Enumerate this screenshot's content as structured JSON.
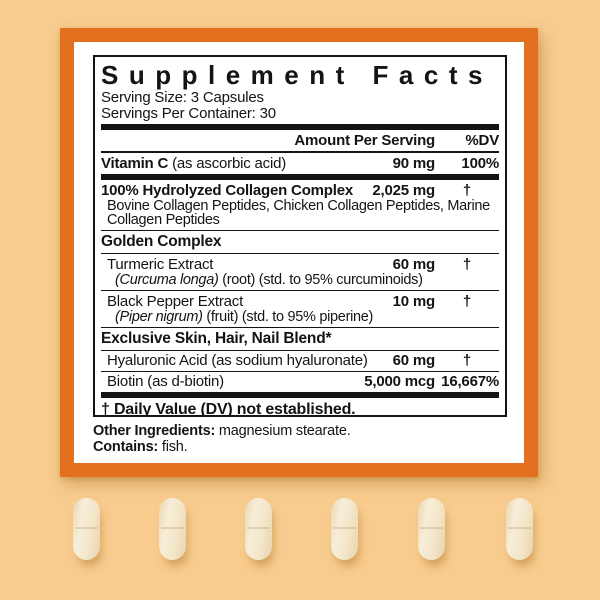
{
  "colors": {
    "bg": "#f8cc8e",
    "orange": "#e2701f",
    "ink": "#151413"
  },
  "label": {
    "title": "Supplement Facts",
    "serving_size": "Serving Size: 3 Capsules",
    "servings_per_container": "Servings Per Container: 30",
    "columns": {
      "amount": "Amount Per Serving",
      "dv": "%DV"
    },
    "rows": {
      "vitamin_c": {
        "name_bold": "Vitamin C",
        "name_rest": " (as ascorbic acid)",
        "amount": "90 mg",
        "dv": "100%"
      },
      "collagen": {
        "name": "100% Hydrolyzed Collagen Complex",
        "amount": "2,025 mg",
        "dv": "†",
        "sub": "Bovine Collagen Peptides, Chicken Collagen Peptides, Marine Collagen Peptides"
      },
      "golden_header": {
        "name": "Golden Complex"
      },
      "turmeric": {
        "name": "Turmeric Extract",
        "amount": "60 mg",
        "dv": "†",
        "latin": "(Curcuma longa)",
        "sub_rest": " (root) (std. to 95% curcuminoids)"
      },
      "black_pepper": {
        "name": "Black Pepper Extract",
        "amount": "10 mg",
        "dv": "†",
        "latin": "(Piper nigrum)",
        "sub_rest": " (fruit) (std. to 95% piperine)"
      },
      "blend_header": {
        "name": "Exclusive Skin, Hair, Nail Blend*"
      },
      "hyaluronic": {
        "name": "Hyaluronic Acid (as sodium hyaluronate)",
        "amount": "60 mg",
        "dv": "†"
      },
      "biotin": {
        "name": "Biotin (as d-biotin)",
        "amount": "5,000 mcg",
        "dv": "16,667%"
      }
    },
    "footnote": "† Daily Value (DV) not established.",
    "other_ingredients_label": "Other Ingredients:",
    "other_ingredients_value": " magnesium stearate.",
    "contains_label": "Contains:",
    "contains_value": " fish."
  }
}
